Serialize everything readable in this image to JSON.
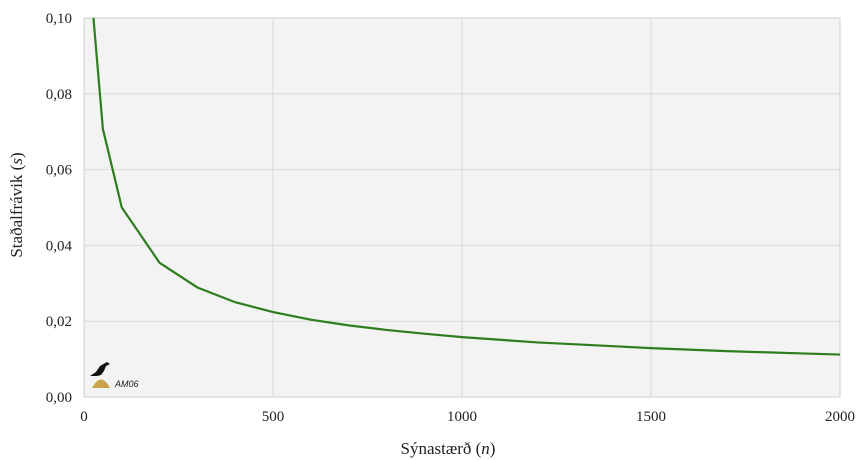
{
  "chart_data": {
    "type": "line",
    "title": "",
    "xlabel": "Sýnastærð",
    "xlabel_var": "n",
    "ylabel": "Staðalfrávik",
    "ylabel_var": "s",
    "xlim": [
      0,
      2000
    ],
    "ylim": [
      0,
      0.1
    ],
    "xticks": [
      0,
      500,
      1000,
      1500,
      2000
    ],
    "xtick_labels": [
      "0",
      "500",
      "1000",
      "1500",
      "2000"
    ],
    "yticks": [
      0,
      0.02,
      0.04,
      0.06,
      0.08,
      0.1
    ],
    "ytick_labels": [
      "0,00",
      "0,02",
      "0,04",
      "0,06",
      "0,08",
      "0,10"
    ],
    "grid": true,
    "series": [
      {
        "color": "#2e7d1e",
        "x": [
          25,
          50,
          100,
          200,
          300,
          400,
          500,
          600,
          700,
          800,
          900,
          1000,
          1100,
          1200,
          1300,
          1400,
          1500,
          1600,
          1700,
          1800,
          1900,
          2000
        ],
        "y": [
          0.1,
          0.0707,
          0.05,
          0.0354,
          0.0289,
          0.025,
          0.0224,
          0.0204,
          0.0189,
          0.0177,
          0.0167,
          0.0158,
          0.0151,
          0.0144,
          0.0139,
          0.0134,
          0.0129,
          0.0125,
          0.0121,
          0.0118,
          0.0115,
          0.0112
        ]
      }
    ]
  },
  "logo": {
    "text": "AM06",
    "icon": "raven-on-mound-icon"
  },
  "colors": {
    "plot_bg": "#f3f3f3",
    "grid": "#d8d8d8",
    "line": "#2e7d1e",
    "mound": "#c9a24a"
  }
}
